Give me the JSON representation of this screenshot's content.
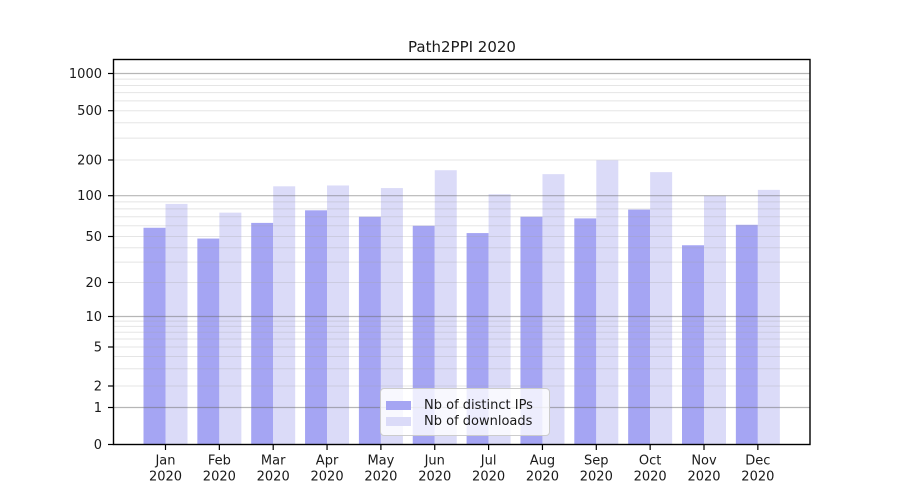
{
  "title": "Path2PPI 2020",
  "chart_data": {
    "type": "bar",
    "title": "Path2PPI 2020",
    "categories": [
      "Jan",
      "Feb",
      "Mar",
      "Apr",
      "May",
      "Jun",
      "Jul",
      "Aug",
      "Sep",
      "Oct",
      "Nov",
      "Dec"
    ],
    "year_label": "2020",
    "series": [
      {
        "name": "Nb of distinct IPs",
        "color": "#a5a5f3",
        "values": [
          58,
          48,
          63,
          78,
          70,
          60,
          53,
          70,
          68,
          79,
          42,
          61
        ]
      },
      {
        "name": "Nb of downloads",
        "color": "#dbdbf8",
        "values": [
          87,
          75,
          120,
          122,
          116,
          164,
          103,
          152,
          199,
          158,
          100,
          112
        ]
      }
    ],
    "xlabel": "",
    "ylabel": "",
    "yscale": "symlog",
    "ylim": [
      0,
      1300
    ],
    "ytick_labels": [
      "0",
      "1",
      "2",
      "5",
      "10",
      "20",
      "50",
      "100",
      "200",
      "500",
      "1000"
    ],
    "yticks": [
      0,
      1,
      2,
      5,
      10,
      20,
      50,
      100,
      200,
      500,
      1000
    ],
    "grid": "major and minor horizontal gridlines",
    "legend_position": "lower center"
  },
  "colors": {
    "axis": "#000000",
    "major_grid": "rgba(110,110,110,0.5)",
    "minor_grid": "rgba(160,160,160,0.28)",
    "text": "#1a1a1a"
  }
}
